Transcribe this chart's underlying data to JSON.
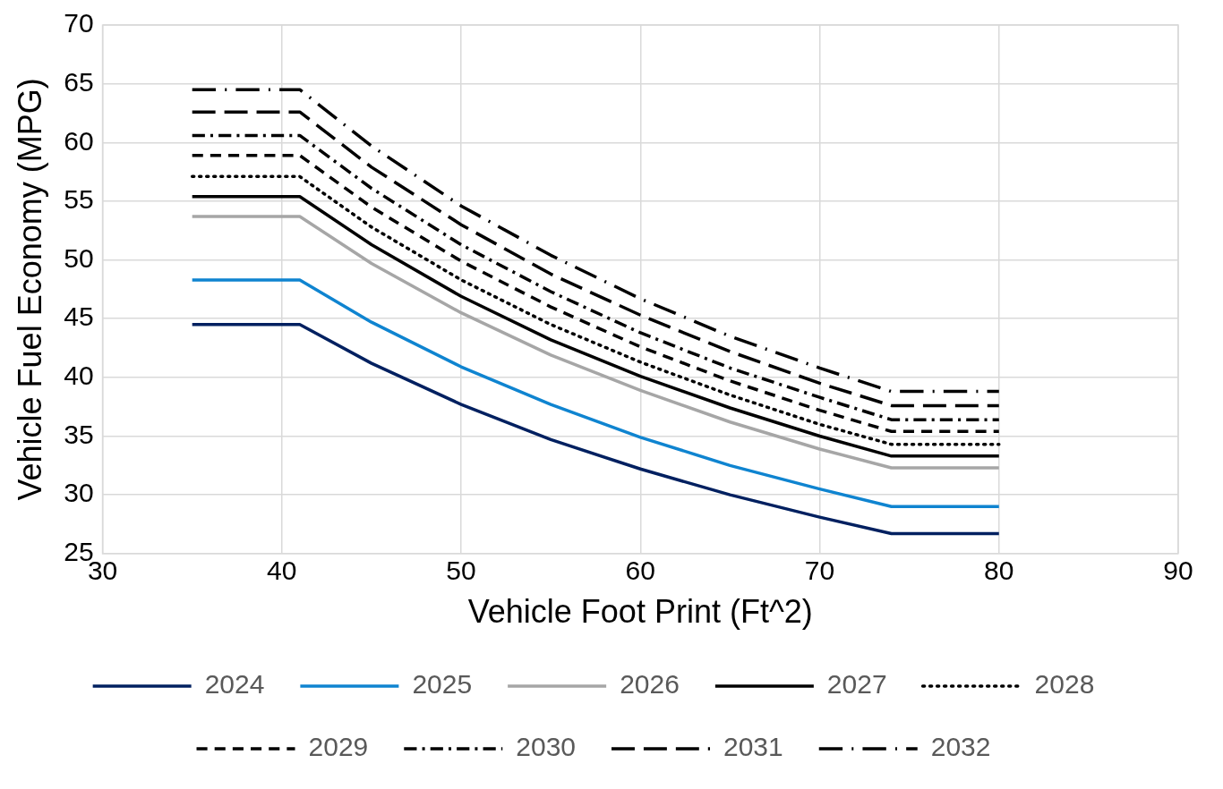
{
  "chart_data": {
    "type": "line",
    "xlabel": "Vehicle Foot Print (Ft^2)",
    "ylabel": "Vehicle Fuel Economy (MPG)",
    "x": [
      35,
      41,
      45,
      50,
      55,
      60,
      65,
      70,
      74,
      80
    ],
    "xlim": [
      30,
      90
    ],
    "xticks": [
      30,
      40,
      50,
      60,
      70,
      80,
      90
    ],
    "ylim": [
      25,
      70
    ],
    "yticks": [
      25,
      30,
      35,
      40,
      45,
      50,
      55,
      60,
      65,
      70
    ],
    "grid": true,
    "legend": "bottom",
    "marker": "none",
    "series": [
      {
        "name": "2024",
        "color": "#002060",
        "line_style": "solid",
        "values": [
          44.5,
          44.5,
          41.2,
          37.7,
          34.7,
          32.2,
          30.0,
          28.1,
          26.7,
          26.7
        ]
      },
      {
        "name": "2025",
        "color": "#0f84d0",
        "line_style": "solid",
        "values": [
          48.3,
          48.3,
          44.7,
          40.9,
          37.7,
          34.9,
          32.5,
          30.5,
          29.0,
          29.0
        ]
      },
      {
        "name": "2026",
        "color": "#a6a6a6",
        "line_style": "solid",
        "values": [
          53.7,
          53.7,
          49.7,
          45.5,
          41.9,
          38.9,
          36.2,
          33.9,
          32.3,
          32.3
        ]
      },
      {
        "name": "2027",
        "color": "#000000",
        "line_style": "solid",
        "values": [
          55.4,
          55.4,
          51.3,
          46.9,
          43.2,
          40.1,
          37.4,
          35.0,
          33.3,
          33.3
        ]
      },
      {
        "name": "2028",
        "color": "#000000",
        "line_style": "dotted",
        "values": [
          57.1,
          57.1,
          52.8,
          48.3,
          44.5,
          41.3,
          38.5,
          36.0,
          34.3,
          34.3
        ]
      },
      {
        "name": "2029",
        "color": "#000000",
        "line_style": "dashed",
        "values": [
          58.9,
          58.9,
          54.5,
          49.9,
          46.0,
          42.6,
          39.7,
          37.2,
          35.4,
          35.4
        ]
      },
      {
        "name": "2030",
        "color": "#000000",
        "line_style": "dashdot",
        "values": [
          60.6,
          60.6,
          56.1,
          51.3,
          47.3,
          43.8,
          40.8,
          38.3,
          36.4,
          36.4
        ]
      },
      {
        "name": "2031",
        "color": "#000000",
        "line_style": "longdash",
        "values": [
          62.6,
          62.6,
          57.9,
          53.0,
          48.8,
          45.3,
          42.2,
          39.5,
          37.6,
          37.6
        ]
      },
      {
        "name": "2032",
        "color": "#000000",
        "line_style": "longdashdot",
        "values": [
          64.5,
          64.5,
          59.7,
          54.6,
          50.4,
          46.7,
          43.5,
          40.8,
          38.8,
          38.8
        ]
      }
    ]
  }
}
